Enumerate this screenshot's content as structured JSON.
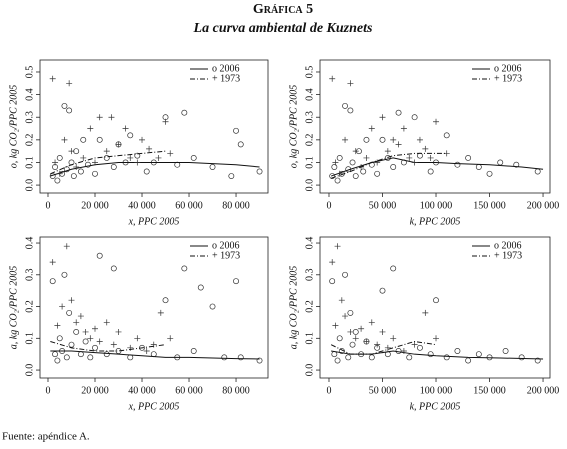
{
  "title": "Gráfica 5",
  "subtitle": "La curva ambiental de Kuznets",
  "source": "Fuente: apéndice A.",
  "chart_data": [
    {
      "type": "scatter",
      "ylabel": "o, kg CO₂/PPC 2005",
      "xlabel": "x, PPC 2005",
      "legend": "upper right",
      "xlim": [
        -3400,
        93600
      ],
      "ylim": [
        -0.035,
        0.553
      ],
      "xticks": [
        0,
        {
          "value": 20000,
          "label": "20 000"
        },
        {
          "value": 40000,
          "label": "40 000"
        },
        {
          "value": 60000,
          "label": "60 000"
        },
        {
          "value": 80000,
          "label": "80 000"
        }
      ],
      "yticks": [
        {
          "value": 0,
          "label": "0.0"
        },
        0.1,
        0.2,
        0.3,
        0.4,
        0.5
      ],
      "series": [
        {
          "name": "o 2006",
          "marker": "o",
          "line": "solid",
          "x": [
            2000,
            3000,
            4000,
            5000,
            6000,
            7000,
            8000,
            9000,
            10000,
            11000,
            12000,
            14000,
            15000,
            17000,
            20000,
            22000,
            25000,
            28000,
            30000,
            33000,
            35000,
            38000,
            42000,
            45000,
            50000,
            55000,
            58000,
            62000,
            70000,
            78000,
            80000,
            82000,
            90000
          ],
          "values": [
            0.04,
            0.08,
            0.02,
            0.12,
            0.05,
            0.35,
            0.07,
            0.33,
            0.1,
            0.04,
            0.15,
            0.06,
            0.2,
            0.09,
            0.05,
            0.2,
            0.12,
            0.08,
            0.18,
            0.1,
            0.22,
            0.13,
            0.06,
            0.1,
            0.3,
            0.09,
            0.32,
            0.12,
            0.08,
            0.04,
            0.24,
            0.18,
            0.06
          ],
          "fit": {
            "x": [
              1000,
              10000,
              20000,
              30000,
              40000,
              50000,
              60000,
              70000,
              80000,
              90000
            ],
            "values": [
              0.04,
              0.07,
              0.09,
              0.1,
              0.1,
              0.1,
              0.1,
              0.095,
              0.09,
              0.08
            ]
          }
        },
        {
          "name": "+ 1973",
          "marker": "+",
          "line": "dashdot",
          "x": [
            2000,
            3000,
            5000,
            7000,
            9000,
            10000,
            12000,
            15000,
            18000,
            20000,
            22000,
            25000,
            27000,
            30000,
            33000,
            35000,
            38000,
            40000,
            43000,
            47000,
            50000,
            52000
          ],
          "values": [
            0.47,
            0.1,
            0.05,
            0.2,
            0.45,
            0.15,
            0.08,
            0.12,
            0.25,
            0.1,
            0.3,
            0.15,
            0.3,
            0.18,
            0.25,
            0.12,
            0.1,
            0.2,
            0.16,
            0.12,
            0.28,
            0.14
          ],
          "fit": {
            "x": [
              1000,
              10000,
              20000,
              30000,
              40000,
              50000
            ],
            "values": [
              0.05,
              0.09,
              0.12,
              0.13,
              0.14,
              0.15
            ]
          }
        }
      ]
    },
    {
      "type": "scatter",
      "ylabel": "o, kg CO₂/PPC 2005",
      "xlabel": "k, PPC 2005",
      "legend": "upper right",
      "xlim": [
        -8400,
        206500
      ],
      "ylim": [
        -0.035,
        0.553
      ],
      "xticks": [
        0,
        {
          "value": 50000,
          "label": "50 000"
        },
        {
          "value": 100000,
          "label": "100 000"
        },
        {
          "value": 150000,
          "label": "150 000"
        },
        {
          "value": 200000,
          "label": "200 000"
        }
      ],
      "yticks": [
        {
          "value": 0,
          "label": "0.0"
        },
        0.1,
        0.2,
        0.3,
        0.4,
        0.5
      ],
      "series": [
        {
          "name": "o 2006",
          "marker": "o",
          "line": "solid",
          "x": [
            3000,
            5000,
            8000,
            10000,
            12000,
            15000,
            18000,
            20000,
            22000,
            25000,
            28000,
            32000,
            35000,
            40000,
            45000,
            50000,
            55000,
            60000,
            65000,
            70000,
            80000,
            85000,
            95000,
            100000,
            110000,
            120000,
            130000,
            140000,
            150000,
            160000,
            175000,
            195000
          ],
          "values": [
            0.04,
            0.08,
            0.02,
            0.12,
            0.05,
            0.35,
            0.07,
            0.33,
            0.1,
            0.04,
            0.15,
            0.06,
            0.2,
            0.09,
            0.05,
            0.2,
            0.12,
            0.08,
            0.32,
            0.1,
            0.3,
            0.13,
            0.06,
            0.1,
            0.22,
            0.09,
            0.12,
            0.08,
            0.05,
            0.1,
            0.09,
            0.06
          ],
          "fit": {
            "x": [
              2000,
              20000,
              40000,
              60000,
              80000,
              100000,
              120000,
              150000,
              180000,
              200000
            ],
            "values": [
              0.04,
              0.07,
              0.1,
              0.12,
              0.1,
              0.1,
              0.095,
              0.09,
              0.08,
              0.07
            ]
          }
        },
        {
          "name": "+ 1973",
          "marker": "+",
          "line": "dashdot",
          "x": [
            3000,
            6000,
            10000,
            15000,
            20000,
            25000,
            30000,
            35000,
            40000,
            45000,
            50000,
            55000,
            60000,
            65000,
            70000,
            75000,
            80000,
            85000,
            90000,
            95000,
            100000,
            110000
          ],
          "values": [
            0.47,
            0.1,
            0.05,
            0.2,
            0.45,
            0.15,
            0.08,
            0.12,
            0.25,
            0.1,
            0.3,
            0.15,
            0.2,
            0.18,
            0.25,
            0.12,
            0.1,
            0.2,
            0.16,
            0.12,
            0.28,
            0.14
          ],
          "fit": {
            "x": [
              2000,
              20000,
              40000,
              60000,
              80000,
              100000,
              110000
            ],
            "values": [
              0.03,
              0.06,
              0.1,
              0.13,
              0.14,
              0.14,
              0.14
            ]
          }
        }
      ]
    },
    {
      "type": "scatter",
      "ylabel": "a, kg CO₂/PPC 2005",
      "xlabel": "x, PPC 2005",
      "legend": "upper right",
      "xlim": [
        -3400,
        93600
      ],
      "ylim": [
        -0.025,
        0.419
      ],
      "xticks": [
        0,
        {
          "value": 20000,
          "label": "20 000"
        },
        {
          "value": 40000,
          "label": "40 000"
        },
        {
          "value": 60000,
          "label": "60 000"
        },
        {
          "value": 80000,
          "label": "80 000"
        }
      ],
      "yticks": [
        {
          "value": 0,
          "label": "0.0"
        },
        0.1,
        0.2,
        0.3,
        0.4
      ],
      "series": [
        {
          "name": "o 2006",
          "marker": "o",
          "line": "solid",
          "x": [
            2000,
            3000,
            4000,
            5000,
            6000,
            7000,
            8000,
            9000,
            10000,
            12000,
            14000,
            16000,
            18000,
            20000,
            22000,
            25000,
            28000,
            30000,
            35000,
            40000,
            45000,
            50000,
            55000,
            58000,
            62000,
            65000,
            70000,
            75000,
            80000,
            82000,
            90000
          ],
          "values": [
            0.28,
            0.05,
            0.03,
            0.1,
            0.06,
            0.3,
            0.04,
            0.18,
            0.08,
            0.12,
            0.05,
            0.09,
            0.04,
            0.07,
            0.36,
            0.05,
            0.32,
            0.06,
            0.04,
            0.07,
            0.05,
            0.22,
            0.04,
            0.32,
            0.06,
            0.26,
            0.2,
            0.04,
            0.28,
            0.04,
            0.03
          ],
          "fit": {
            "x": [
              1000,
              10000,
              20000,
              30000,
              40000,
              50000,
              60000,
              70000,
              80000,
              90000
            ],
            "values": [
              0.06,
              0.06,
              0.055,
              0.05,
              0.045,
              0.04,
              0.04,
              0.038,
              0.036,
              0.035
            ]
          }
        },
        {
          "name": "+ 1973",
          "marker": "+",
          "line": "dashdot",
          "x": [
            2000,
            4000,
            6000,
            8000,
            10000,
            12000,
            14000,
            16000,
            18000,
            20000,
            22000,
            25000,
            28000,
            30000,
            35000,
            38000,
            42000,
            45000,
            48000,
            52000
          ],
          "values": [
            0.34,
            0.14,
            0.2,
            0.39,
            0.22,
            0.15,
            0.17,
            0.12,
            0.1,
            0.13,
            0.09,
            0.15,
            0.08,
            0.12,
            0.07,
            0.1,
            0.06,
            0.08,
            0.18,
            0.1
          ],
          "fit": {
            "x": [
              1000,
              10000,
              20000,
              30000,
              40000,
              50000
            ],
            "values": [
              0.09,
              0.07,
              0.06,
              0.06,
              0.07,
              0.08
            ]
          }
        }
      ]
    },
    {
      "type": "scatter",
      "ylabel": "a, kg CO₂/PPC 2005",
      "xlabel": "k, PPC 2005",
      "legend": "upper right",
      "xlim": [
        -8400,
        206500
      ],
      "ylim": [
        -0.025,
        0.419
      ],
      "xticks": [
        0,
        {
          "value": 50000,
          "label": "50 000"
        },
        {
          "value": 100000,
          "label": "100 000"
        },
        {
          "value": 150000,
          "label": "150 000"
        },
        {
          "value": 200000,
          "label": "200 000"
        }
      ],
      "yticks": [
        {
          "value": 0,
          "label": "0.0"
        },
        0.1,
        0.2,
        0.3,
        0.4
      ],
      "series": [
        {
          "name": "o 2006",
          "marker": "o",
          "line": "solid",
          "x": [
            3000,
            5000,
            8000,
            10000,
            12000,
            15000,
            18000,
            20000,
            22000,
            25000,
            30000,
            35000,
            40000,
            45000,
            50000,
            55000,
            60000,
            65000,
            75000,
            85000,
            95000,
            100000,
            110000,
            120000,
            130000,
            140000,
            150000,
            165000,
            180000,
            195000
          ],
          "values": [
            0.28,
            0.05,
            0.03,
            0.1,
            0.06,
            0.3,
            0.04,
            0.18,
            0.08,
            0.12,
            0.05,
            0.09,
            0.04,
            0.07,
            0.25,
            0.05,
            0.32,
            0.06,
            0.04,
            0.07,
            0.05,
            0.22,
            0.04,
            0.06,
            0.03,
            0.05,
            0.04,
            0.06,
            0.04,
            0.03
          ],
          "fit": {
            "x": [
              2000,
              20000,
              40000,
              60000,
              80000,
              100000,
              130000,
              160000,
              200000
            ],
            "values": [
              0.06,
              0.05,
              0.05,
              0.06,
              0.05,
              0.045,
              0.04,
              0.038,
              0.035
            ]
          }
        },
        {
          "name": "+ 1973",
          "marker": "+",
          "line": "dashdot",
          "x": [
            3000,
            6000,
            8000,
            12000,
            15000,
            20000,
            25000,
            30000,
            35000,
            40000,
            45000,
            50000,
            55000,
            60000,
            70000,
            80000,
            90000,
            100000
          ],
          "values": [
            0.34,
            0.14,
            0.39,
            0.22,
            0.17,
            0.12,
            0.1,
            0.13,
            0.09,
            0.15,
            0.08,
            0.12,
            0.07,
            0.1,
            0.06,
            0.08,
            0.18,
            0.1
          ],
          "fit": {
            "x": [
              2000,
              20000,
              40000,
              60000,
              80000,
              100000
            ],
            "values": [
              0.08,
              0.05,
              0.05,
              0.07,
              0.09,
              0.08
            ]
          }
        }
      ]
    }
  ]
}
